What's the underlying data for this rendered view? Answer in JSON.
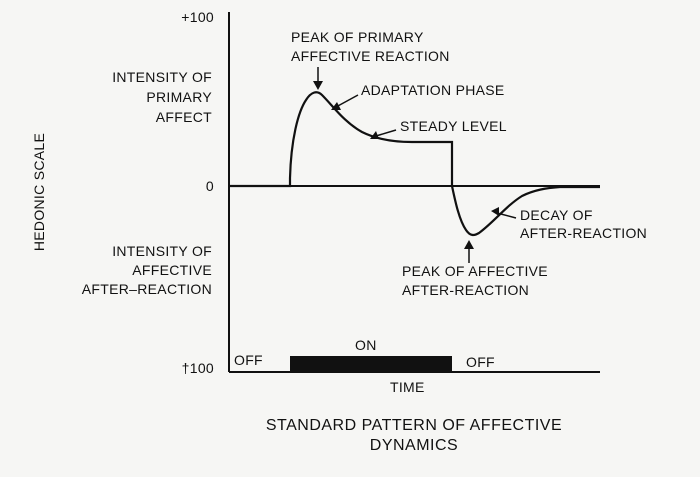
{
  "axis": {
    "y_label": "HEDONIC SCALE",
    "y_top": "+100",
    "y_zero": "0",
    "y_bottom": "†100",
    "x_label": "TIME"
  },
  "left_labels": {
    "primary_intensity": [
      "INTENSITY OF",
      "PRIMARY",
      "AFFECT"
    ],
    "after_intensity": [
      "INTENSITY OF",
      "AFFECTIVE",
      "AFTER–REACTION"
    ]
  },
  "annotations": {
    "peak_primary": [
      "PEAK OF PRIMARY",
      "AFFECTIVE REACTION"
    ],
    "adaptation": "ADAPTATION PHASE",
    "steady": "STEADY LEVEL",
    "decay": [
      "DECAY OF",
      "AFTER-REACTION"
    ],
    "peak_after": [
      "PEAK OF AFFECTIVE",
      "AFTER-REACTION"
    ]
  },
  "stimulus": {
    "off_left": "OFF",
    "on": "ON",
    "off_right": "OFF"
  },
  "caption": [
    "STANDARD PATTERN OF AFFECTIVE",
    "DYNAMICS"
  ],
  "colors": {
    "ink": "#111111",
    "background": "#f6f6f4"
  }
}
